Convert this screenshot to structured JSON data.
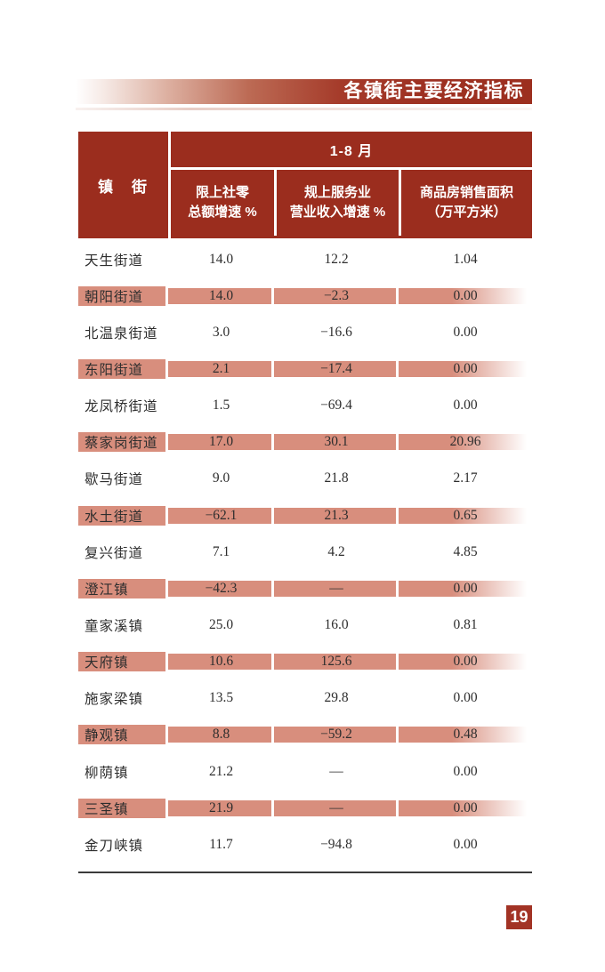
{
  "header": {
    "title": "各镇街主要经济指标"
  },
  "colors": {
    "accent_red": "#9b2d1e",
    "bar_red_end": "#9c2f1f",
    "row_highlight_pink": "#d88e7d",
    "page_box_red": "#a23325",
    "table_bottom_rule": "#3a3a3a"
  },
  "table": {
    "corner_header": "镇　街",
    "period_header": "1-8 月",
    "columns": [
      {
        "line1": "限上社零",
        "line2": "总额增速 %"
      },
      {
        "line1": "规上服务业",
        "line2": "营业收入增速 %"
      },
      {
        "line1": "商品房销售面积",
        "line2": "（万平方米）"
      }
    ],
    "rows": [
      {
        "name": "天生街道",
        "retail": "14.0",
        "service": "12.2",
        "housing": "1.04"
      },
      {
        "name": "朝阳街道",
        "retail": "14.0",
        "service": "−2.3",
        "housing": "0.00"
      },
      {
        "name": "北温泉街道",
        "retail": "3.0",
        "service": "−16.6",
        "housing": "0.00"
      },
      {
        "name": "东阳街道",
        "retail": "2.1",
        "service": "−17.4",
        "housing": "0.00"
      },
      {
        "name": "龙凤桥街道",
        "retail": "1.5",
        "service": "−69.4",
        "housing": "0.00"
      },
      {
        "name": "蔡家岗街道",
        "retail": "17.0",
        "service": "30.1",
        "housing": "20.96"
      },
      {
        "name": "歇马街道",
        "retail": "9.0",
        "service": "21.8",
        "housing": "2.17"
      },
      {
        "name": "水土街道",
        "retail": "−62.1",
        "service": "21.3",
        "housing": "0.65"
      },
      {
        "name": "复兴街道",
        "retail": "7.1",
        "service": "4.2",
        "housing": "4.85"
      },
      {
        "name": "澄江镇",
        "retail": "−42.3",
        "service": "—",
        "housing": "0.00"
      },
      {
        "name": "童家溪镇",
        "retail": "25.0",
        "service": "16.0",
        "housing": "0.81"
      },
      {
        "name": "天府镇",
        "retail": "10.6",
        "service": "125.6",
        "housing": "0.00"
      },
      {
        "name": "施家梁镇",
        "retail": "13.5",
        "service": "29.8",
        "housing": "0.00"
      },
      {
        "name": "静观镇",
        "retail": "8.8",
        "service": "−59.2",
        "housing": "0.48"
      },
      {
        "name": "柳荫镇",
        "retail": "21.2",
        "service": "—",
        "housing": "0.00"
      },
      {
        "name": "三圣镇",
        "retail": "21.9",
        "service": "—",
        "housing": "0.00"
      },
      {
        "name": "金刀峡镇",
        "retail": "11.7",
        "service": "−94.8",
        "housing": "0.00"
      }
    ]
  },
  "footer": {
    "page_number": "19"
  }
}
